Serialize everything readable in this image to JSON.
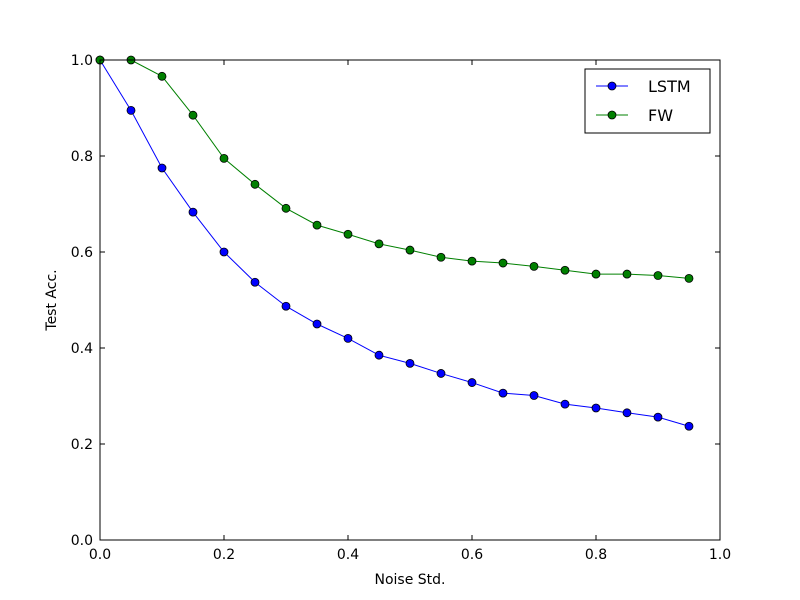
{
  "chart_data": {
    "type": "line",
    "title": "",
    "xlabel": "Noise Std.",
    "ylabel": "Test Acc.",
    "xlim": [
      0.0,
      1.0
    ],
    "ylim": [
      0.0,
      1.0
    ],
    "grid": false,
    "legend_position": "top-right",
    "x_ticks": [
      0.0,
      0.2,
      0.4,
      0.6,
      0.8,
      1.0
    ],
    "y_ticks": [
      0.0,
      0.2,
      0.4,
      0.6,
      0.8,
      1.0
    ],
    "x_tick_labels": [
      "0.0",
      "0.2",
      "0.4",
      "0.6",
      "0.8",
      "1.0"
    ],
    "y_tick_labels": [
      "0.0",
      "0.2",
      "0.4",
      "0.6",
      "0.8",
      "1.0"
    ],
    "x": [
      0.0,
      0.05,
      0.1,
      0.15,
      0.2,
      0.25,
      0.3,
      0.35,
      0.4,
      0.45,
      0.5,
      0.55,
      0.6,
      0.65,
      0.7,
      0.75,
      0.8,
      0.85,
      0.9,
      0.95
    ],
    "series": [
      {
        "name": "LSTM",
        "color": "#0000ff",
        "values": [
          1.0,
          0.895,
          0.775,
          0.683,
          0.6,
          0.537,
          0.487,
          0.45,
          0.42,
          0.385,
          0.368,
          0.347,
          0.328,
          0.306,
          0.301,
          0.283,
          0.275,
          0.265,
          0.256,
          0.237
        ]
      },
      {
        "name": "FW",
        "color": "#008000",
        "values": [
          1.0,
          1.0,
          0.966,
          0.885,
          0.795,
          0.741,
          0.691,
          0.656,
          0.637,
          0.617,
          0.604,
          0.589,
          0.581,
          0.577,
          0.57,
          0.562,
          0.554,
          0.554,
          0.551,
          0.545
        ]
      }
    ]
  }
}
